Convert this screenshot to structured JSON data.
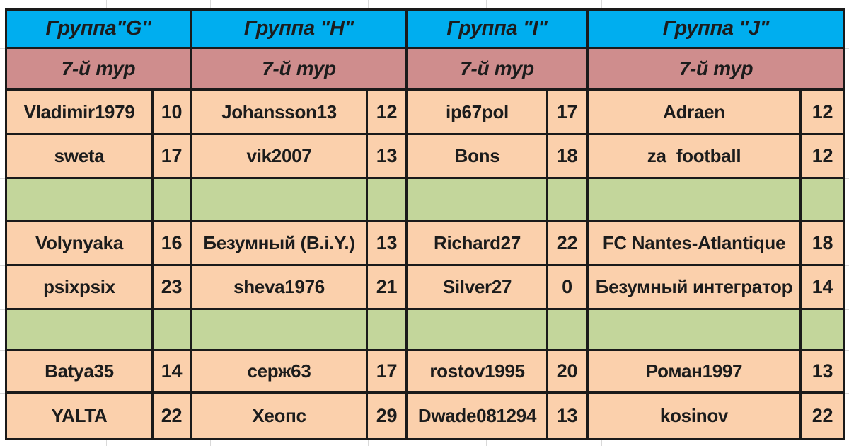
{
  "colors": {
    "header_blue": "#00AEEF",
    "round_rose": "#CF8D8D",
    "cell_peach": "#FBD0AC",
    "cell_green": "#C3D69B",
    "border": "#1a1a1a",
    "text": "#1c1c1c",
    "gridline": "#d9d9d9",
    "page_bg": "#ffffff"
  },
  "table": {
    "row_types": [
      "data",
      "data",
      "empty",
      "data",
      "data",
      "empty",
      "data",
      "data"
    ],
    "groups": [
      {
        "title": "Группа\"G\"",
        "round": "7-й тур",
        "rows": [
          [
            "Vladimir1979",
            "10"
          ],
          [
            "sweta",
            "17"
          ],
          [
            "",
            ""
          ],
          [
            "Volynyaka",
            "16"
          ],
          [
            "psixpsix",
            "23"
          ],
          [
            "",
            ""
          ],
          [
            "Batya35",
            "14"
          ],
          [
            "YALTA",
            "22"
          ]
        ]
      },
      {
        "title": "Группа \"H\"",
        "round": "7-й тур",
        "rows": [
          [
            "Johansson13",
            "12"
          ],
          [
            "vik2007",
            "13"
          ],
          [
            "",
            ""
          ],
          [
            "Безумный (B.i.Y.)",
            "13"
          ],
          [
            "sheva1976",
            "21"
          ],
          [
            "",
            ""
          ],
          [
            "серж63",
            "17"
          ],
          [
            "Хеопс",
            "29"
          ]
        ]
      },
      {
        "title": "Группа \"I\"",
        "round": "7-й тур",
        "rows": [
          [
            "ip67pol",
            "17"
          ],
          [
            "Bons",
            "18"
          ],
          [
            "",
            ""
          ],
          [
            "Richard27",
            "22"
          ],
          [
            "Silver27",
            "0"
          ],
          [
            "",
            ""
          ],
          [
            "rostov1995",
            "20"
          ],
          [
            "Dwade081294",
            "13"
          ]
        ]
      },
      {
        "title": "Группа \"J\"",
        "round": "7-й тур",
        "rows": [
          [
            "Adraen",
            "12"
          ],
          [
            "za_football",
            "12"
          ],
          [
            "",
            ""
          ],
          [
            "FC Nantes-Atlantique",
            "18"
          ],
          [
            "Безумный интегратор",
            "14"
          ],
          [
            "",
            ""
          ],
          [
            "Роман1997",
            "13"
          ],
          [
            "kosinov",
            "22"
          ]
        ]
      }
    ]
  }
}
